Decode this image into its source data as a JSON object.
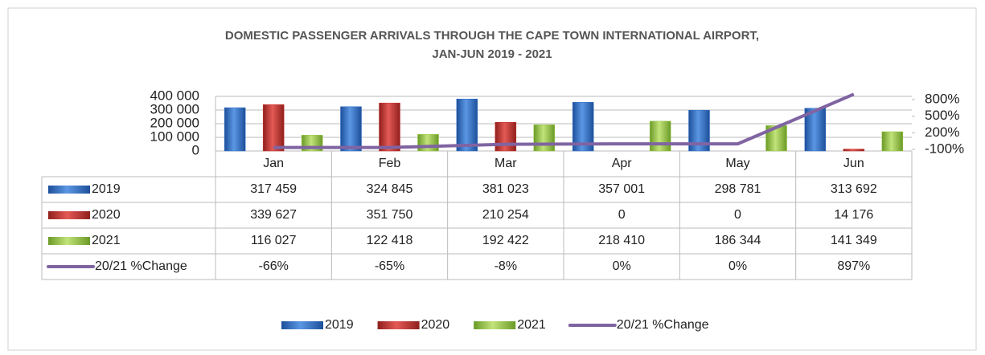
{
  "chart_data": {
    "type": "bar",
    "title": "DOMESTIC PASSENGER ARRIVALS THROUGH THE CAPE TOWN INTERNATIONAL AIRPORT,",
    "subtitle": "JAN-JUN 2019 - 2021",
    "categories": [
      "Jan",
      "Feb",
      "Mar",
      "Apr",
      "May",
      "Jun"
    ],
    "series": [
      {
        "name": "2019",
        "color": "#2f6fc6",
        "values": [
          317459,
          324845,
          381023,
          357001,
          298781,
          313692
        ],
        "value_labels": [
          "317 459",
          "324 845",
          "381 023",
          "357 001",
          "298 781",
          "313 692"
        ]
      },
      {
        "name": "2020",
        "color": "#c8302c",
        "values": [
          339627,
          351750,
          210254,
          0,
          0,
          14176
        ],
        "value_labels": [
          "339 627",
          "351 750",
          "210 254",
          "0",
          "0",
          "14 176"
        ]
      },
      {
        "name": "2021",
        "color": "#98c843",
        "values": [
          116027,
          122418,
          192422,
          218410,
          186344,
          141349
        ],
        "value_labels": [
          "116 027",
          "122 418",
          "192 422",
          "218 410",
          "186 344",
          "141 349"
        ]
      },
      {
        "name": "20/21 %Change",
        "color": "#8064a2",
        "type": "line",
        "axis": "y2",
        "values": [
          -66,
          -65,
          -8,
          0,
          0,
          897
        ],
        "value_labels": [
          "-66%",
          "-65%",
          "-8%",
          "0%",
          "0%",
          "897%"
        ]
      }
    ],
    "ylim": [
      0,
      400000
    ],
    "yticks": [
      0,
      {
        "value": 100000,
        "label": "100 000"
      },
      {
        "value": 200000,
        "label": "200 000"
      },
      {
        "value": 300000,
        "label": "300 000"
      },
      {
        "value": 400000,
        "label": "400 000"
      }
    ],
    "y2lim": [
      -100,
      800
    ],
    "y2ticks": [
      {
        "value": -100,
        "label": "-100%"
      },
      {
        "value": 200,
        "label": "200%"
      },
      {
        "value": 500,
        "label": "500%"
      },
      {
        "value": 800,
        "label": "800%"
      }
    ],
    "grid": true,
    "legend": "bottom"
  }
}
